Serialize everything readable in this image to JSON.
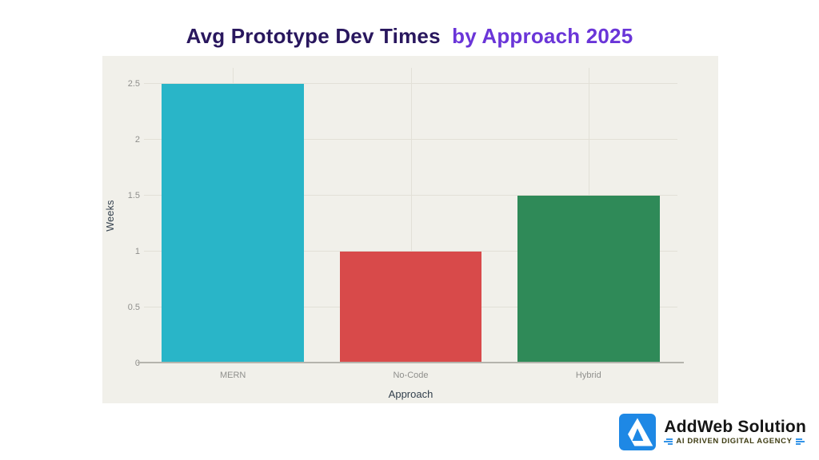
{
  "title": {
    "part1": "Avg Prototype Dev Times",
    "part2": "by Approach 2025"
  },
  "chart_data": {
    "type": "bar",
    "title": "Avg Prototype Dev Times by Approach 2025",
    "categories": [
      "MERN",
      "No-Code",
      "Hybrid"
    ],
    "values": [
      2.5,
      1.0,
      1.5
    ],
    "bar_colors": [
      "#29b5c8",
      "#d84a4a",
      "#2f8a58"
    ],
    "xlabel": "Approach",
    "ylabel": "Weeks",
    "ylim": [
      0,
      2.5
    ],
    "yticks": [
      0,
      0.5,
      1,
      1.5,
      2,
      2.5
    ],
    "grid": true,
    "legend_position": "none",
    "plot_background": "#f1f0ea"
  },
  "branding": {
    "name": "AddWeb Solution",
    "tagline": "AI DRIVEN DIGITAL AGENCY"
  },
  "colors": {
    "page_background": "#ffffff",
    "title_primary": "#29175e",
    "title_accent": "#6a35d8",
    "plot_background": "#f1f0ea",
    "gridline": "#e2e0d7",
    "axis_line": "#b5b4ad",
    "tick_text": "#8f8f8c",
    "axis_title_text": "#33404d",
    "brand_blue": "#1e88e5",
    "brand_name_text": "#141414",
    "brand_tagline_text": "#3e3c12"
  }
}
